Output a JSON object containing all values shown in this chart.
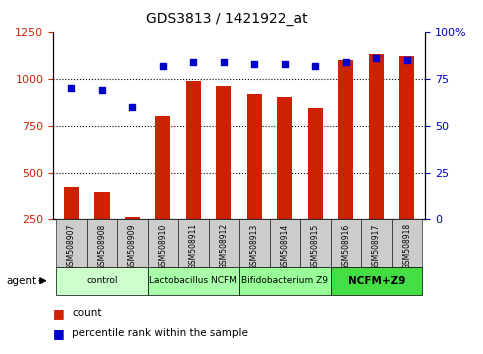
{
  "title": "GDS3813 / 1421922_at",
  "samples": [
    "GSM508907",
    "GSM508908",
    "GSM508909",
    "GSM508910",
    "GSM508911",
    "GSM508912",
    "GSM508913",
    "GSM508914",
    "GSM508915",
    "GSM508916",
    "GSM508917",
    "GSM508918"
  ],
  "counts": [
    425,
    395,
    265,
    800,
    990,
    960,
    920,
    905,
    845,
    1100,
    1130,
    1120
  ],
  "percentiles": [
    70,
    69,
    60,
    82,
    84,
    84,
    83,
    83,
    82,
    84,
    86,
    85
  ],
  "groups": [
    {
      "label": "control",
      "start": 0,
      "end": 3,
      "color": "#ccffcc",
      "bold": false
    },
    {
      "label": "Lactobacillus NCFM",
      "start": 3,
      "end": 6,
      "color": "#aaffaa",
      "bold": false
    },
    {
      "label": "Bifidobacterium Z9",
      "start": 6,
      "end": 9,
      "color": "#99ff99",
      "bold": false
    },
    {
      "label": "NCFM+Z9",
      "start": 9,
      "end": 12,
      "color": "#44dd44",
      "bold": true
    }
  ],
  "bar_color": "#cc2200",
  "dot_color": "#0000cc",
  "left_ylim": [
    250,
    1250
  ],
  "right_ylim": [
    0,
    100
  ],
  "left_yticks": [
    250,
    500,
    750,
    1000,
    1250
  ],
  "right_yticks": [
    0,
    25,
    50,
    75,
    100
  ],
  "right_yticklabels": [
    "0",
    "25",
    "50",
    "75",
    "100%"
  ],
  "grid_values": [
    500,
    750,
    1000
  ],
  "bar_color_hex": "#cc2200",
  "dot_color_hex": "#0000cc",
  "tick_label_bg": "#cccccc",
  "legend_count_label": "count",
  "legend_pct_label": "percentile rank within the sample",
  "agent_label": "agent"
}
